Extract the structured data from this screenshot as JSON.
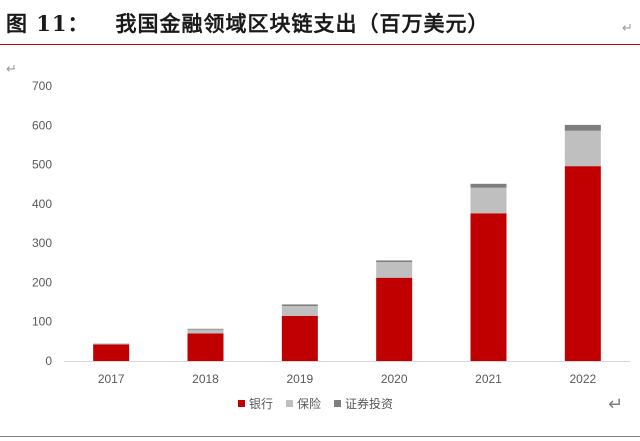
{
  "figure": {
    "label": "图 11：",
    "title": "我国金融领域区块链支出（百万美元）"
  },
  "chart_data": {
    "type": "bar",
    "stacked": true,
    "categories": [
      "2017",
      "2018",
      "2019",
      "2020",
      "2021",
      "2022"
    ],
    "series": [
      {
        "name": "银行",
        "color": "#c00000",
        "values": [
          42,
          70,
          115,
          212,
          376,
          496
        ]
      },
      {
        "name": "保险",
        "color": "#bfbfbf",
        "values": [
          3,
          10,
          25,
          40,
          65,
          90
        ]
      },
      {
        "name": "证券投资",
        "color": "#7f7f7f",
        "values": [
          0,
          2,
          4,
          4,
          10,
          15
        ]
      }
    ],
    "ylim": [
      0,
      700
    ],
    "yticks": [
      0,
      100,
      200,
      300,
      400,
      500,
      600,
      700
    ],
    "grid": false,
    "legend": "bottom"
  }
}
